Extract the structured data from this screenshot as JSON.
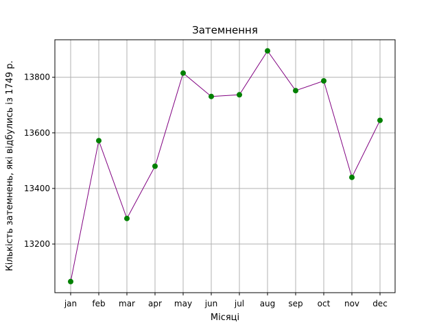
{
  "chart_data": {
    "type": "line",
    "title": "Затемнення",
    "xlabel": "Місяці",
    "ylabel": "Кількість затемнень, які відбулись із 1749 р.",
    "categories": [
      "jan",
      "feb",
      "mar",
      "apr",
      "may",
      "jun",
      "jul",
      "aug",
      "sep",
      "oct",
      "nov",
      "dec"
    ],
    "series": [
      {
        "values": [
          13065,
          13572,
          13292,
          13480,
          13815,
          13731,
          13737,
          13895,
          13752,
          13787,
          13440,
          13645
        ],
        "line_color": "#800080",
        "marker_color": "#008000"
      }
    ],
    "ylim": [
      13025,
      13935
    ],
    "yticks": [
      13200,
      13400,
      13600,
      13800
    ],
    "grid": true
  }
}
